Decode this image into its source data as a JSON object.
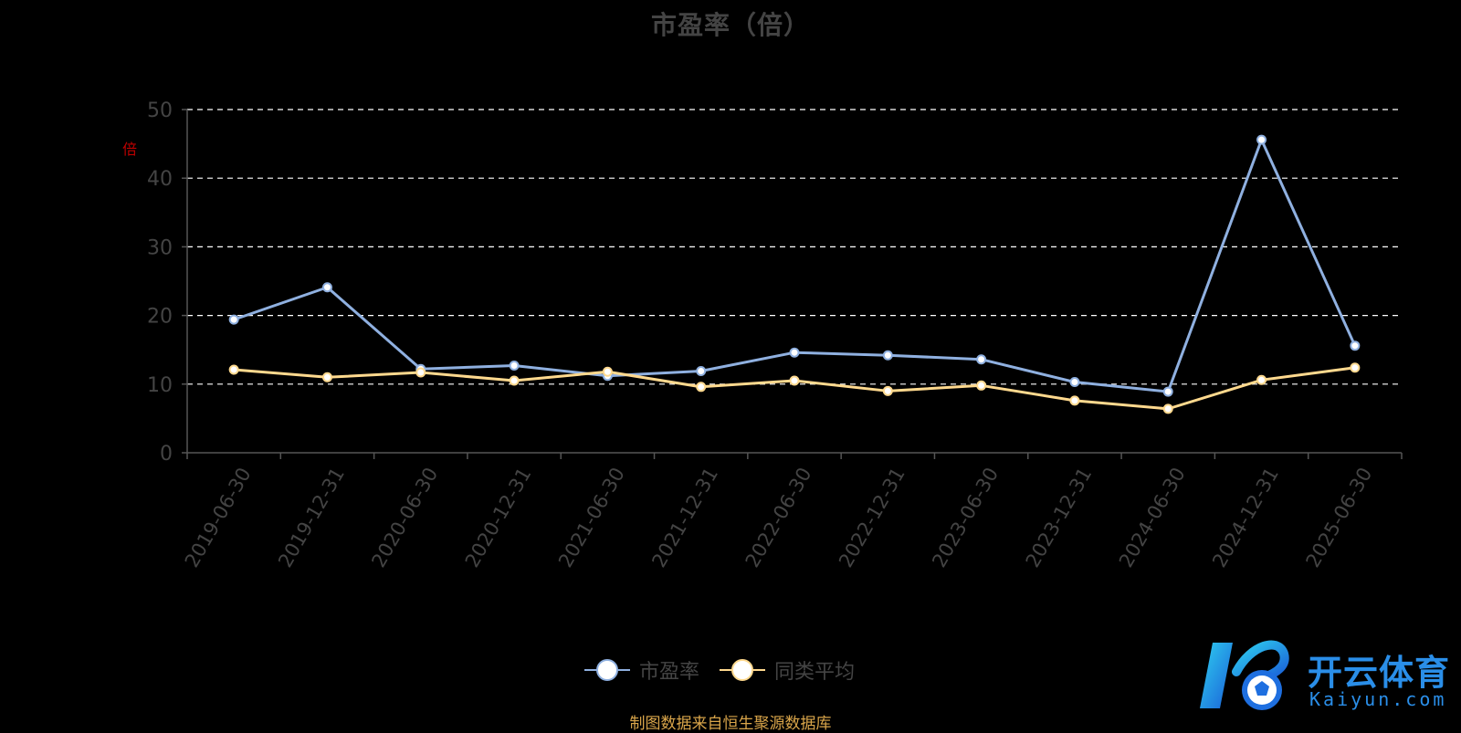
{
  "title": "市盈率（倍）",
  "unit_label": "倍",
  "source_note": "制图数据来自恒生聚源数据库",
  "logo": {
    "cn": "开云体育",
    "en": "Kaiyun.com"
  },
  "colors": {
    "pe": "#8fb0e0",
    "avg": "#ffd98e",
    "grid": "#ffffff",
    "axis": "#555555",
    "tick": "#444444"
  },
  "chart_data": {
    "type": "line",
    "title": "市盈率（倍）",
    "categories": [
      "2019-06-30",
      "2019-12-31",
      "2020-06-30",
      "2020-12-31",
      "2021-06-30",
      "2021-12-31",
      "2022-06-30",
      "2022-12-31",
      "2023-06-30",
      "2023-12-31",
      "2024-06-30",
      "2024-12-31",
      "2025-06-30"
    ],
    "series": [
      {
        "name": "市盈率",
        "color": "#8fb0e0",
        "values": [
          19.4,
          24.1,
          12.2,
          12.7,
          11.2,
          11.9,
          14.6,
          14.2,
          13.6,
          10.3,
          8.9,
          45.6,
          15.6
        ]
      },
      {
        "name": "同类平均",
        "color": "#ffd98e",
        "values": [
          12.1,
          11.0,
          11.7,
          10.5,
          11.8,
          9.6,
          10.5,
          9.0,
          9.8,
          7.6,
          6.4,
          10.6,
          12.4
        ]
      }
    ],
    "ylim": [
      0,
      50
    ],
    "yticks": [
      0,
      10,
      20,
      30,
      40,
      50
    ],
    "grid": "dashed horizontal",
    "legend_position": "bottom-center"
  }
}
